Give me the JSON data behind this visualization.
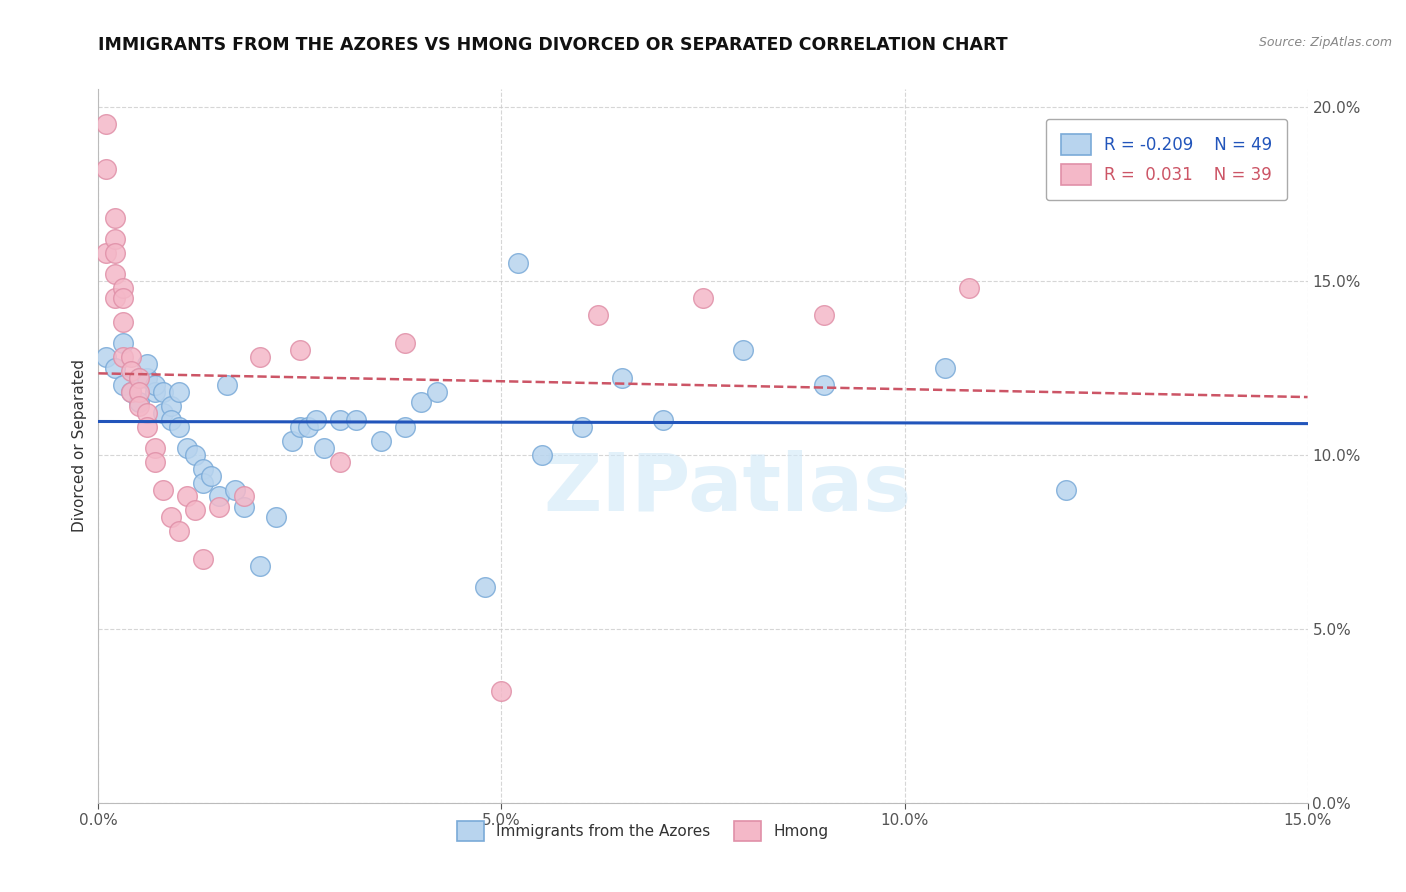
{
  "title": "IMMIGRANTS FROM THE AZORES VS HMONG DIVORCED OR SEPARATED CORRELATION CHART",
  "source": "Source: ZipAtlas.com",
  "ylabel": "Divorced or Separated",
  "legend_label1": "Immigrants from the Azores",
  "legend_label2": "Hmong",
  "r1": "-0.209",
  "n1": "49",
  "r2": "0.031",
  "n2": "39",
  "xmin": 0.0,
  "xmax": 0.15,
  "ymin": 0.0,
  "ymax": 0.205,
  "color_blue": "#b8d4ee",
  "color_pink": "#f4b8c8",
  "color_blue_edge": "#7aaad8",
  "color_pink_edge": "#e090a8",
  "color_blue_line": "#2255bb",
  "color_pink_line": "#cc5566",
  "blue_points_x": [
    0.001,
    0.002,
    0.003,
    0.003,
    0.004,
    0.005,
    0.005,
    0.006,
    0.006,
    0.007,
    0.007,
    0.008,
    0.008,
    0.009,
    0.009,
    0.01,
    0.01,
    0.011,
    0.012,
    0.013,
    0.013,
    0.014,
    0.015,
    0.016,
    0.017,
    0.018,
    0.02,
    0.022,
    0.024,
    0.025,
    0.026,
    0.027,
    0.028,
    0.03,
    0.032,
    0.035,
    0.038,
    0.04,
    0.042,
    0.048,
    0.052,
    0.055,
    0.06,
    0.065,
    0.07,
    0.08,
    0.09,
    0.105,
    0.12
  ],
  "blue_points_y": [
    0.128,
    0.125,
    0.12,
    0.132,
    0.118,
    0.122,
    0.115,
    0.122,
    0.126,
    0.118,
    0.12,
    0.112,
    0.118,
    0.114,
    0.11,
    0.118,
    0.108,
    0.102,
    0.1,
    0.096,
    0.092,
    0.094,
    0.088,
    0.12,
    0.09,
    0.085,
    0.068,
    0.082,
    0.104,
    0.108,
    0.108,
    0.11,
    0.102,
    0.11,
    0.11,
    0.104,
    0.108,
    0.115,
    0.118,
    0.062,
    0.155,
    0.1,
    0.108,
    0.122,
    0.11,
    0.13,
    0.12,
    0.125,
    0.09
  ],
  "pink_points_x": [
    0.001,
    0.001,
    0.001,
    0.002,
    0.002,
    0.002,
    0.002,
    0.002,
    0.003,
    0.003,
    0.003,
    0.003,
    0.004,
    0.004,
    0.004,
    0.005,
    0.005,
    0.005,
    0.006,
    0.006,
    0.007,
    0.007,
    0.008,
    0.009,
    0.01,
    0.011,
    0.012,
    0.013,
    0.015,
    0.018,
    0.02,
    0.025,
    0.03,
    0.038,
    0.05,
    0.062,
    0.075,
    0.09,
    0.108
  ],
  "pink_points_y": [
    0.195,
    0.182,
    0.158,
    0.162,
    0.152,
    0.158,
    0.168,
    0.145,
    0.148,
    0.145,
    0.138,
    0.128,
    0.128,
    0.124,
    0.118,
    0.122,
    0.118,
    0.114,
    0.112,
    0.108,
    0.102,
    0.098,
    0.09,
    0.082,
    0.078,
    0.088,
    0.084,
    0.07,
    0.085,
    0.088,
    0.128,
    0.13,
    0.098,
    0.132,
    0.032,
    0.14,
    0.145,
    0.14,
    0.148
  ]
}
